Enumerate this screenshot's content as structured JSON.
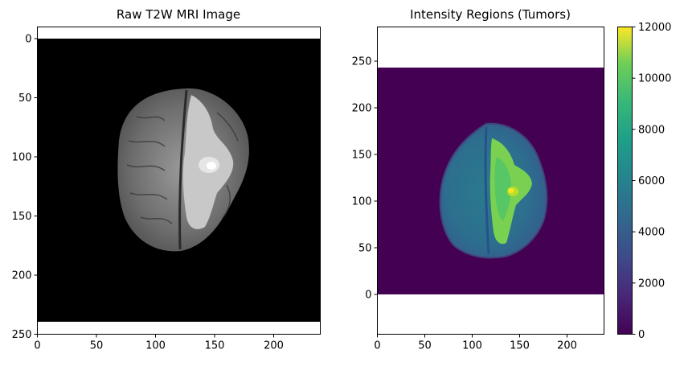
{
  "left_panel": {
    "title": "Raw T2W MRI Image",
    "x_ticks": [
      "0",
      "50",
      "100",
      "150",
      "200"
    ],
    "y_ticks": [
      "0",
      "50",
      "100",
      "150",
      "200",
      "250"
    ]
  },
  "right_panel": {
    "title": "Intensity Regions (Tumors)",
    "x_ticks": [
      "0",
      "50",
      "100",
      "150",
      "200"
    ],
    "y_ticks": [
      "0",
      "50",
      "100",
      "150",
      "200",
      "250"
    ]
  },
  "colorbar": {
    "colormap": "viridis",
    "range": [
      0,
      12000
    ],
    "ticks": [
      "0",
      "2000",
      "4000",
      "6000",
      "8000",
      "10000",
      "12000"
    ]
  },
  "colors": {
    "viridis_low": "#440154",
    "viridis_mid": "#21918c",
    "viridis_high": "#fde725"
  }
}
